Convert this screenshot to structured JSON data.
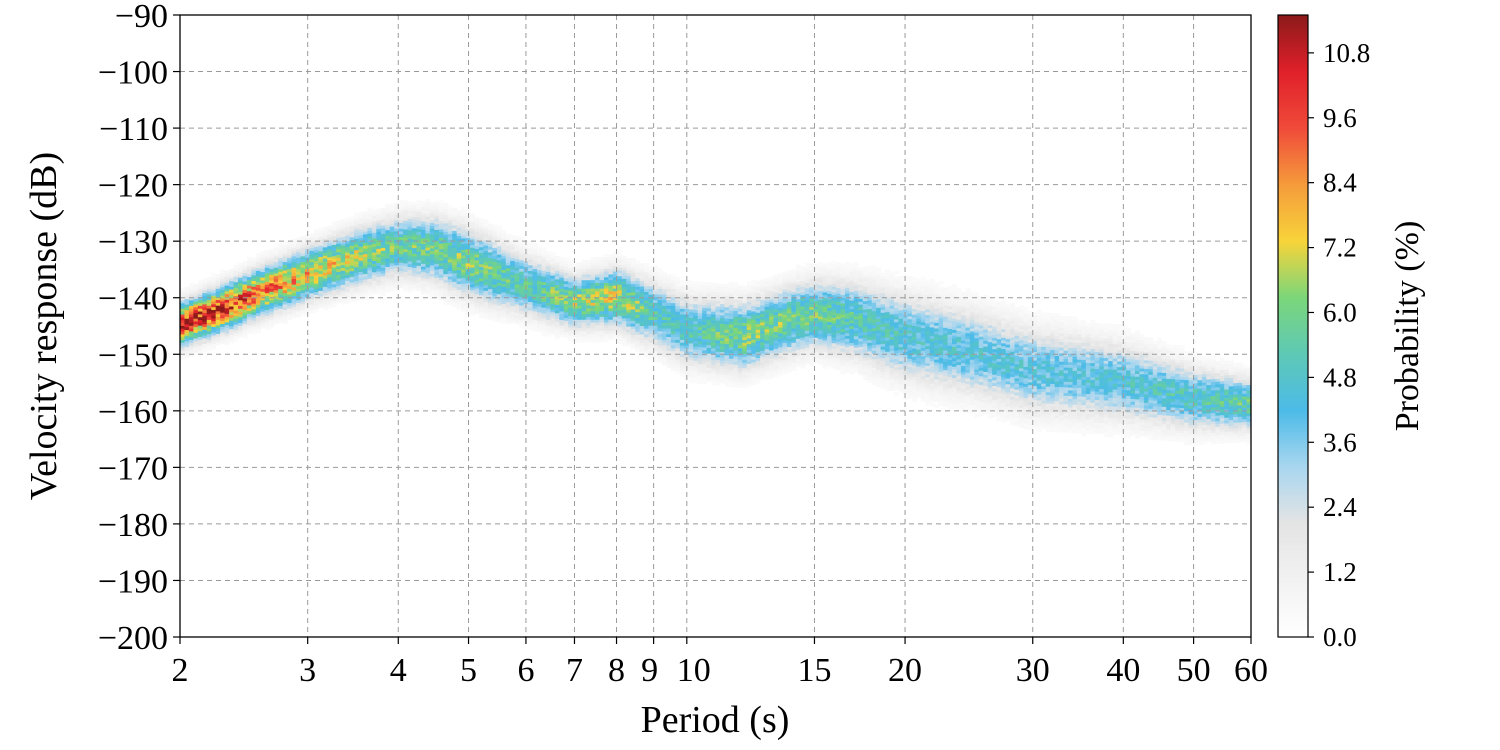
{
  "chart_data": {
    "type": "heatmap",
    "title": "",
    "xlabel": "Period (s)",
    "ylabel": "Velocity response (dB)",
    "x_scale": "log",
    "xlim": [
      2,
      60
    ],
    "ylim": [
      -200,
      -90
    ],
    "x_ticks": [
      2,
      3,
      4,
      5,
      6,
      7,
      8,
      9,
      10,
      15,
      20,
      30,
      40,
      50,
      60
    ],
    "x_tick_labels": [
      "2",
      "3",
      "4",
      "5",
      "6",
      "7",
      "8",
      "9",
      "10",
      "15",
      "20",
      "30",
      "40",
      "50",
      "60"
    ],
    "y_ticks": [
      -200,
      -190,
      -180,
      -170,
      -160,
      -150,
      -140,
      -130,
      -120,
      -110,
      -100,
      -90
    ],
    "y_tick_labels": [
      "−200",
      "−190",
      "−180",
      "−170",
      "−160",
      "−150",
      "−140",
      "−130",
      "−120",
      "−110",
      "−100",
      "−90"
    ],
    "grid": true,
    "colorbar": {
      "label": "Probability (%)",
      "range": [
        0.0,
        11.5
      ],
      "ticks": [
        0.0,
        1.2,
        2.4,
        3.6,
        4.8,
        6.0,
        7.2,
        8.4,
        9.6,
        10.8
      ],
      "tick_labels": [
        "0.0",
        "1.2",
        "2.4",
        "3.6",
        "4.8",
        "6.0",
        "7.2",
        "8.4",
        "9.6",
        "10.8"
      ],
      "colors": [
        "#ffffff",
        "#f2f2f2",
        "#e4e4e4",
        "#a9d6ef",
        "#4cbbe8",
        "#5ec9b5",
        "#7bd67a",
        "#f7d43a",
        "#f59b3b",
        "#f04a3a",
        "#e0202a",
        "#8b1a1a"
      ]
    },
    "mode_curve": {
      "period": [
        2,
        2.3,
        2.6,
        3,
        3.5,
        4,
        4.5,
        5,
        6,
        7,
        8,
        9,
        10,
        12,
        14,
        15,
        17,
        20,
        25,
        30,
        40,
        50,
        60
      ],
      "db": [
        -145,
        -142,
        -139,
        -136,
        -133,
        -131,
        -131.5,
        -134,
        -138,
        -141,
        -140,
        -143,
        -146,
        -147,
        -144,
        -143,
        -144,
        -147,
        -150,
        -153,
        -155,
        -158,
        -159
      ]
    },
    "band_halfwidth_db": {
      "period": [
        2,
        3,
        4,
        5,
        7,
        10,
        15,
        20,
        30,
        40,
        60
      ],
      "half": [
        2.5,
        3,
        3.5,
        4,
        3,
        4,
        4,
        5,
        5,
        4.5,
        3
      ]
    },
    "peak_probability": {
      "period": [
        2,
        2.3,
        2.6,
        3,
        3.5,
        4,
        5,
        6,
        7,
        8,
        9,
        10,
        12,
        15,
        20,
        30,
        40,
        50,
        60
      ],
      "percent": [
        10.5,
        10.0,
        8.8,
        7.8,
        6.8,
        5.6,
        6.2,
        5.2,
        6.6,
        7.0,
        5.2,
        4.8,
        6.2,
        5.8,
        4.6,
        4.2,
        4.4,
        4.9,
        5.6
      ]
    }
  }
}
